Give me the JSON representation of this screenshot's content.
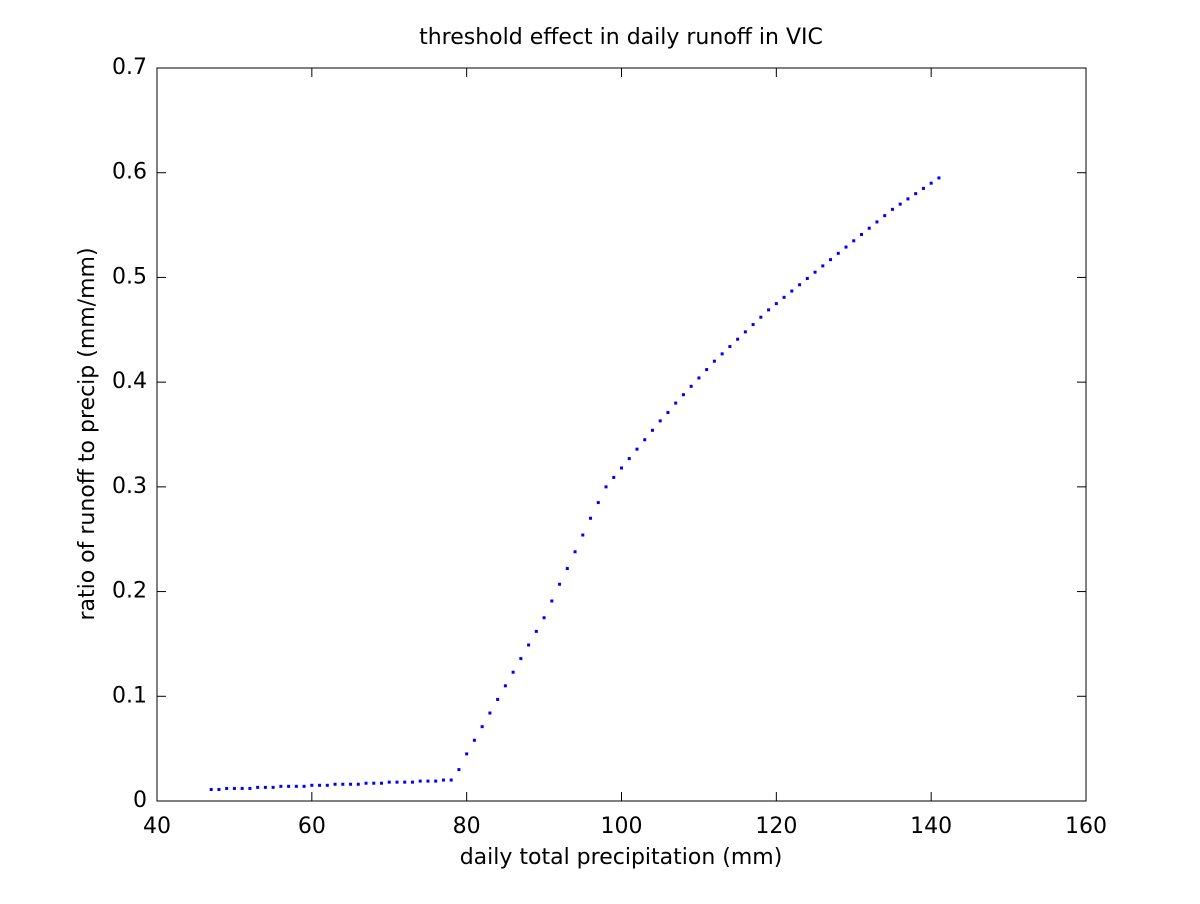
{
  "chart_data": {
    "type": "scatter",
    "title": "threshold effect in daily runoff in VIC",
    "xlabel": "daily total precipitation (mm)",
    "ylabel": "ratio of runoff to precip (mm/mm)",
    "color": "#0000ff",
    "x": [
      47,
      48,
      49,
      50,
      51,
      52,
      53,
      54,
      55,
      56,
      57,
      58,
      59,
      60,
      61,
      62,
      63,
      64,
      65,
      66,
      67,
      68,
      69,
      70,
      71,
      72,
      73,
      74,
      75,
      76,
      77,
      78,
      79,
      80,
      81,
      82,
      83,
      84,
      85,
      86,
      87,
      88,
      89,
      90,
      91,
      92,
      93,
      94,
      95,
      96,
      97,
      98,
      99,
      100,
      101,
      102,
      103,
      104,
      105,
      106,
      107,
      108,
      109,
      110,
      111,
      112,
      113,
      114,
      115,
      116,
      117,
      118,
      119,
      120,
      121,
      122,
      123,
      124,
      125,
      126,
      127,
      128,
      129,
      130,
      131,
      132,
      133,
      134,
      135,
      136,
      137,
      138,
      139,
      140,
      141
    ],
    "values": [
      0.011,
      0.011,
      0.012,
      0.012,
      0.012,
      0.012,
      0.013,
      0.013,
      0.013,
      0.014,
      0.014,
      0.014,
      0.014,
      0.015,
      0.015,
      0.015,
      0.016,
      0.016,
      0.016,
      0.016,
      0.017,
      0.017,
      0.017,
      0.018,
      0.018,
      0.018,
      0.018,
      0.019,
      0.019,
      0.019,
      0.02,
      0.02,
      0.03,
      0.045,
      0.058,
      0.071,
      0.084,
      0.097,
      0.11,
      0.123,
      0.136,
      0.149,
      0.162,
      0.175,
      0.191,
      0.207,
      0.222,
      0.238,
      0.254,
      0.27,
      0.285,
      0.3,
      0.309,
      0.318,
      0.327,
      0.336,
      0.345,
      0.354,
      0.363,
      0.371,
      0.38,
      0.388,
      0.396,
      0.404,
      0.412,
      0.42,
      0.427,
      0.434,
      0.441,
      0.448,
      0.455,
      0.462,
      0.469,
      0.475,
      0.481,
      0.487,
      0.493,
      0.499,
      0.505,
      0.511,
      0.517,
      0.523,
      0.529,
      0.535,
      0.541,
      0.547,
      0.553,
      0.559,
      0.565,
      0.57,
      0.575,
      0.58,
      0.585,
      0.59,
      0.595
    ],
    "xlim": [
      40,
      160
    ],
    "xticks": [
      40,
      60,
      80,
      100,
      120,
      140,
      160
    ],
    "ylim": [
      0,
      0.7
    ],
    "yticks": [
      0,
      0.1,
      0.2,
      0.3,
      0.4,
      0.5,
      0.6,
      0.7
    ],
    "grid": false
  }
}
